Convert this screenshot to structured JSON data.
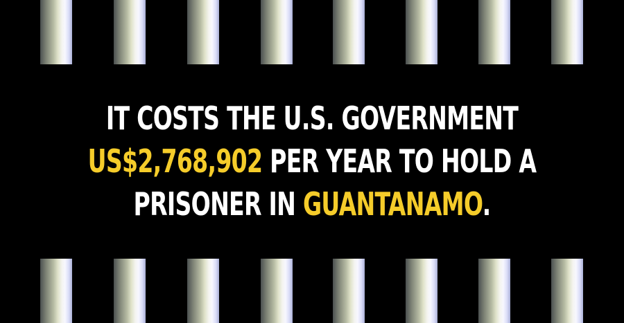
{
  "colors": {
    "background": "#000000",
    "text": "#ffffff",
    "highlight": "#f5cc2a"
  },
  "decoration": {
    "bars_per_row": 8,
    "bar_rows": 2
  },
  "headline": {
    "line1": "IT COSTS THE U.S. GOVERNMENT",
    "line2_highlight": "US$2,768,902",
    "line2_rest": " PER YEAR TO HOLD A",
    "line3_start": "PRISONER IN ",
    "line3_highlight": "GUANTANAMO",
    "line3_end": "."
  }
}
